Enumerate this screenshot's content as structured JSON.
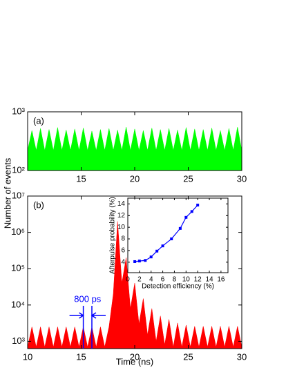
{
  "chart_data": [
    {
      "type": "area",
      "label": "(a)",
      "yscale": "log",
      "xlim": [
        10,
        30
      ],
      "xticks": [
        15,
        20,
        25,
        30
      ],
      "ylim": [
        100,
        1000
      ],
      "yticks": [
        {
          "value": 100,
          "label": "10²"
        },
        {
          "value": 1000,
          "label": "10³"
        }
      ],
      "series": [
        {
          "color": "#00ff00",
          "x": [
            10.0,
            10.4,
            10.8,
            11.2,
            11.6,
            12.0,
            12.4,
            12.8,
            13.2,
            13.6,
            14.0,
            14.4,
            14.8,
            15.2,
            15.6,
            16.0,
            16.4,
            16.8,
            17.2,
            17.6,
            18.0,
            18.4,
            18.8,
            19.2,
            19.6,
            20.0,
            20.4,
            20.8,
            21.2,
            21.6,
            22.0,
            22.4,
            22.8,
            23.2,
            23.6,
            24.0,
            24.4,
            24.8,
            25.2,
            25.6,
            26.0,
            26.4,
            26.8,
            27.2,
            27.6,
            28.0,
            28.4,
            28.8,
            29.2,
            29.6,
            30.0
          ],
          "values": [
            220,
            480,
            220,
            520,
            220,
            500,
            220,
            540,
            220,
            490,
            220,
            510,
            220,
            530,
            220,
            470,
            220,
            500,
            220,
            520,
            220,
            490,
            220,
            550,
            220,
            510,
            220,
            480,
            220,
            530,
            220,
            500,
            220,
            520,
            220,
            490,
            220,
            540,
            220,
            510,
            220,
            500,
            220,
            530,
            220,
            480,
            220,
            520,
            220,
            550,
            220
          ]
        }
      ]
    },
    {
      "type": "area",
      "label": "(b)",
      "yscale": "log",
      "x_label": "Time (ns)",
      "y_label": "Number of events",
      "xlim": [
        10,
        30
      ],
      "xticks": [
        10,
        15,
        20,
        25,
        30
      ],
      "ylim": [
        630,
        10000000
      ],
      "yticks": [
        {
          "value": 1000,
          "label": "10³"
        },
        {
          "value": 10000,
          "label": "10⁴"
        },
        {
          "value": 100000,
          "label": "10⁵"
        },
        {
          "value": 1000000,
          "label": "10⁶"
        },
        {
          "value": 10000000,
          "label": "10⁷"
        }
      ],
      "series": [
        {
          "color": "#ff0000",
          "x": [
            10.0,
            10.4,
            10.8,
            11.2,
            11.6,
            12.0,
            12.4,
            12.8,
            13.2,
            13.6,
            14.0,
            14.4,
            14.8,
            15.2,
            15.6,
            16.0,
            16.4,
            16.8,
            17.2,
            17.6,
            18.0,
            18.4,
            18.8,
            19.2,
            19.6,
            20.0,
            20.4,
            20.8,
            21.2,
            21.6,
            22.0,
            22.4,
            22.8,
            23.2,
            23.6,
            24.0,
            24.4,
            24.8,
            25.2,
            25.6,
            26.0,
            26.4,
            26.8,
            27.2,
            27.6,
            28.0,
            28.4,
            28.8,
            29.2,
            29.6,
            30.0
          ],
          "values": [
            700,
            2500,
            700,
            2500,
            700,
            2500,
            700,
            2500,
            700,
            2500,
            700,
            2500,
            700,
            2500,
            700,
            2500,
            700,
            2500,
            700,
            2500,
            20000,
            2000000,
            40000,
            200000,
            8000,
            40000,
            3000,
            15000,
            1500,
            8000,
            1000,
            5000,
            800,
            4000,
            700,
            3200,
            700,
            2800,
            700,
            2600,
            700,
            2600,
            700,
            2600,
            700,
            2600,
            700,
            2600,
            700,
            2600,
            700
          ]
        }
      ],
      "annotations": [
        {
          "text": "800 ps",
          "x": [
            15.2,
            16.0
          ],
          "color": "#0000ff"
        }
      ]
    },
    {
      "type": "line",
      "x_label": "Detection efficiency (%)",
      "y_label": "Afterpulse probability (%)",
      "xlim": [
        0,
        17.2
      ],
      "xticks": [
        0,
        2,
        4,
        6,
        8,
        10,
        12,
        14,
        16
      ],
      "ylim": [
        2.2,
        15
      ],
      "yticks": [
        4,
        6,
        8,
        10,
        12,
        14
      ],
      "series": [
        {
          "color": "#0000ff",
          "marker": true,
          "x": [
            1.2,
            2,
            3,
            4,
            5,
            6,
            7.5,
            9,
            10,
            11,
            12
          ],
          "values": [
            4.1,
            4.2,
            4.3,
            4.9,
            5.9,
            6.8,
            8.0,
            9.8,
            11.7,
            12.7,
            13.8
          ]
        }
      ]
    }
  ]
}
